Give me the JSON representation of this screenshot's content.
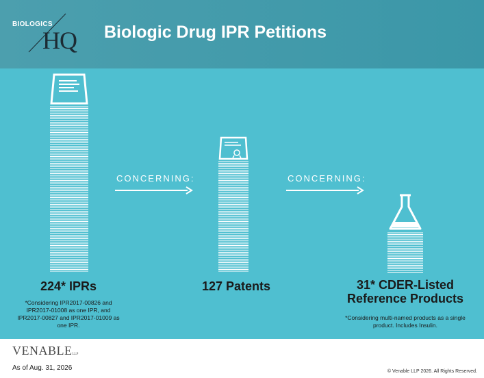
{
  "header": {
    "logo_biologics": "BIOLOGICS",
    "logo_hq": "HQ",
    "title": "Biologic Drug IPR Petitions"
  },
  "flow": {
    "connector_1": "CONCERNING:",
    "connector_2": "CONCERNING:"
  },
  "stats": [
    {
      "label": "224* IPRs",
      "icon": "document-icon",
      "note_lines": [
        "*Considering IPR2017-00826 and",
        "IPR2017-01008 as one IPR, and",
        "IPR2017-00827 and IPR2017-01009 as",
        "one IPR."
      ]
    },
    {
      "label": "127 Patents",
      "icon": "patent-certificate-icon",
      "note_lines": []
    },
    {
      "label_lines": [
        "31* CDER-Listed",
        "Reference Products"
      ],
      "icon": "flask-icon",
      "note_lines": [
        "*Considering multi-named products as a single",
        "product.  Includes Insulin."
      ]
    }
  ],
  "footer": {
    "brand": "VENABLE",
    "brand_suffix": "LLP",
    "as_of": "As of Aug. 31, 2026",
    "copyright": "© Venable LLP 2026. All Rights Reserved."
  },
  "colors": {
    "header_bg": "#3b97a8",
    "main_bg": "#4fbfd0",
    "accent_white": "#ffffff"
  }
}
